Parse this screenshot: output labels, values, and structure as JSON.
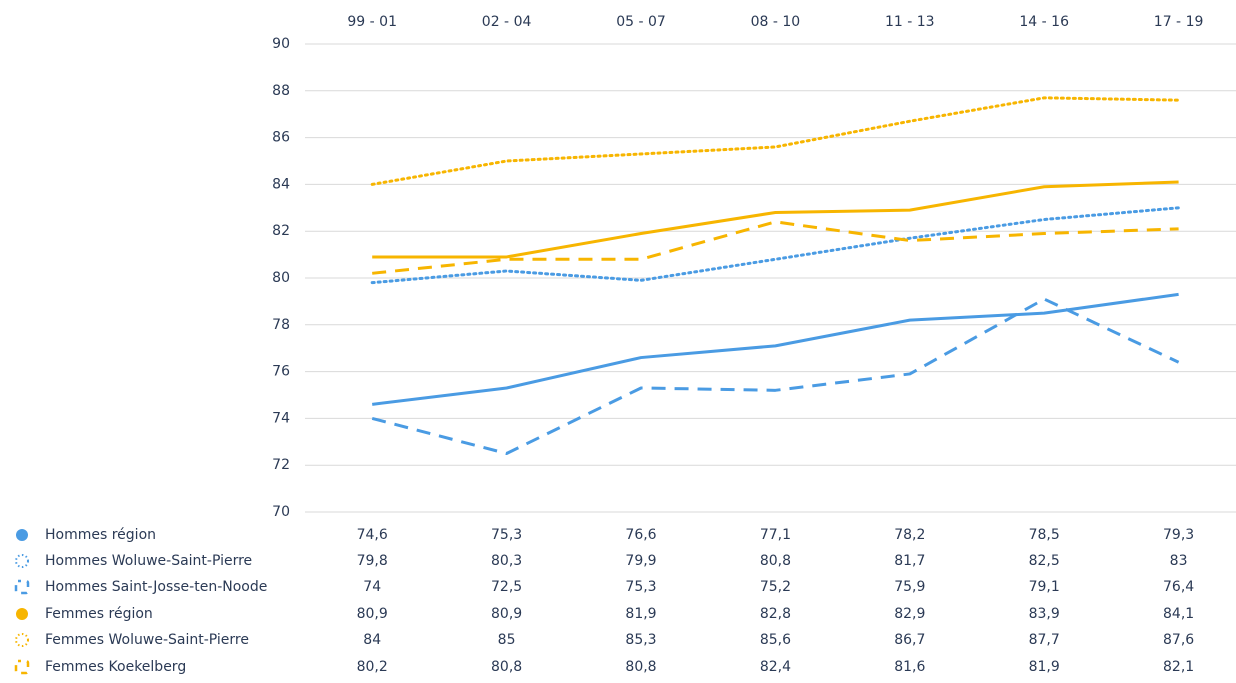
{
  "chart_data": {
    "type": "line",
    "categories": [
      "99 - 01",
      "02 - 04",
      "05 - 07",
      "08 - 10",
      "11 - 13",
      "14 - 16",
      "17 - 19"
    ],
    "ylim": [
      70,
      90
    ],
    "yticks": [
      70,
      72,
      74,
      76,
      78,
      80,
      82,
      84,
      86,
      88,
      90
    ],
    "grid": true,
    "series": [
      {
        "name": "Hommes région",
        "color": "#4a9be3",
        "style": "solid",
        "values": [
          74.6,
          75.3,
          76.6,
          77.1,
          78.2,
          78.5,
          79.3
        ],
        "value_labels": [
          "74,6",
          "75,3",
          "76,6",
          "77,1",
          "78,2",
          "78,5",
          "79,3"
        ]
      },
      {
        "name": "Hommes Woluwe-Saint-Pierre",
        "color": "#4a9be3",
        "style": "dotted",
        "values": [
          79.8,
          80.3,
          79.9,
          80.8,
          81.7,
          82.5,
          83
        ],
        "value_labels": [
          "79,8",
          "80,3",
          "79,9",
          "80,8",
          "81,7",
          "82,5",
          "83"
        ]
      },
      {
        "name": "Hommes Saint-Josse-ten-Noode",
        "color": "#4a9be3",
        "style": "dashed",
        "values": [
          74,
          72.5,
          75.3,
          75.2,
          75.9,
          79.1,
          76.4
        ],
        "value_labels": [
          "74",
          "72,5",
          "75,3",
          "75,2",
          "75,9",
          "79,1",
          "76,4"
        ]
      },
      {
        "name": "Femmes région",
        "color": "#f7b500",
        "style": "solid",
        "values": [
          80.9,
          80.9,
          81.9,
          82.8,
          82.9,
          83.9,
          84.1
        ],
        "value_labels": [
          "80,9",
          "80,9",
          "81,9",
          "82,8",
          "82,9",
          "83,9",
          "84,1"
        ]
      },
      {
        "name": "Femmes Woluwe-Saint-Pierre",
        "color": "#f7b500",
        "style": "dotted",
        "values": [
          84,
          85,
          85.3,
          85.6,
          86.7,
          87.7,
          87.6
        ],
        "value_labels": [
          "84",
          "85",
          "85,3",
          "85,6",
          "86,7",
          "87,7",
          "87,6"
        ]
      },
      {
        "name": "Femmes Koekelberg",
        "color": "#f7b500",
        "style": "dashed",
        "values": [
          80.2,
          80.8,
          80.8,
          82.4,
          81.6,
          81.9,
          82.1
        ],
        "value_labels": [
          "80,2",
          "80,8",
          "80,8",
          "82,4",
          "81,6",
          "81,9",
          "82,1"
        ]
      }
    ]
  }
}
